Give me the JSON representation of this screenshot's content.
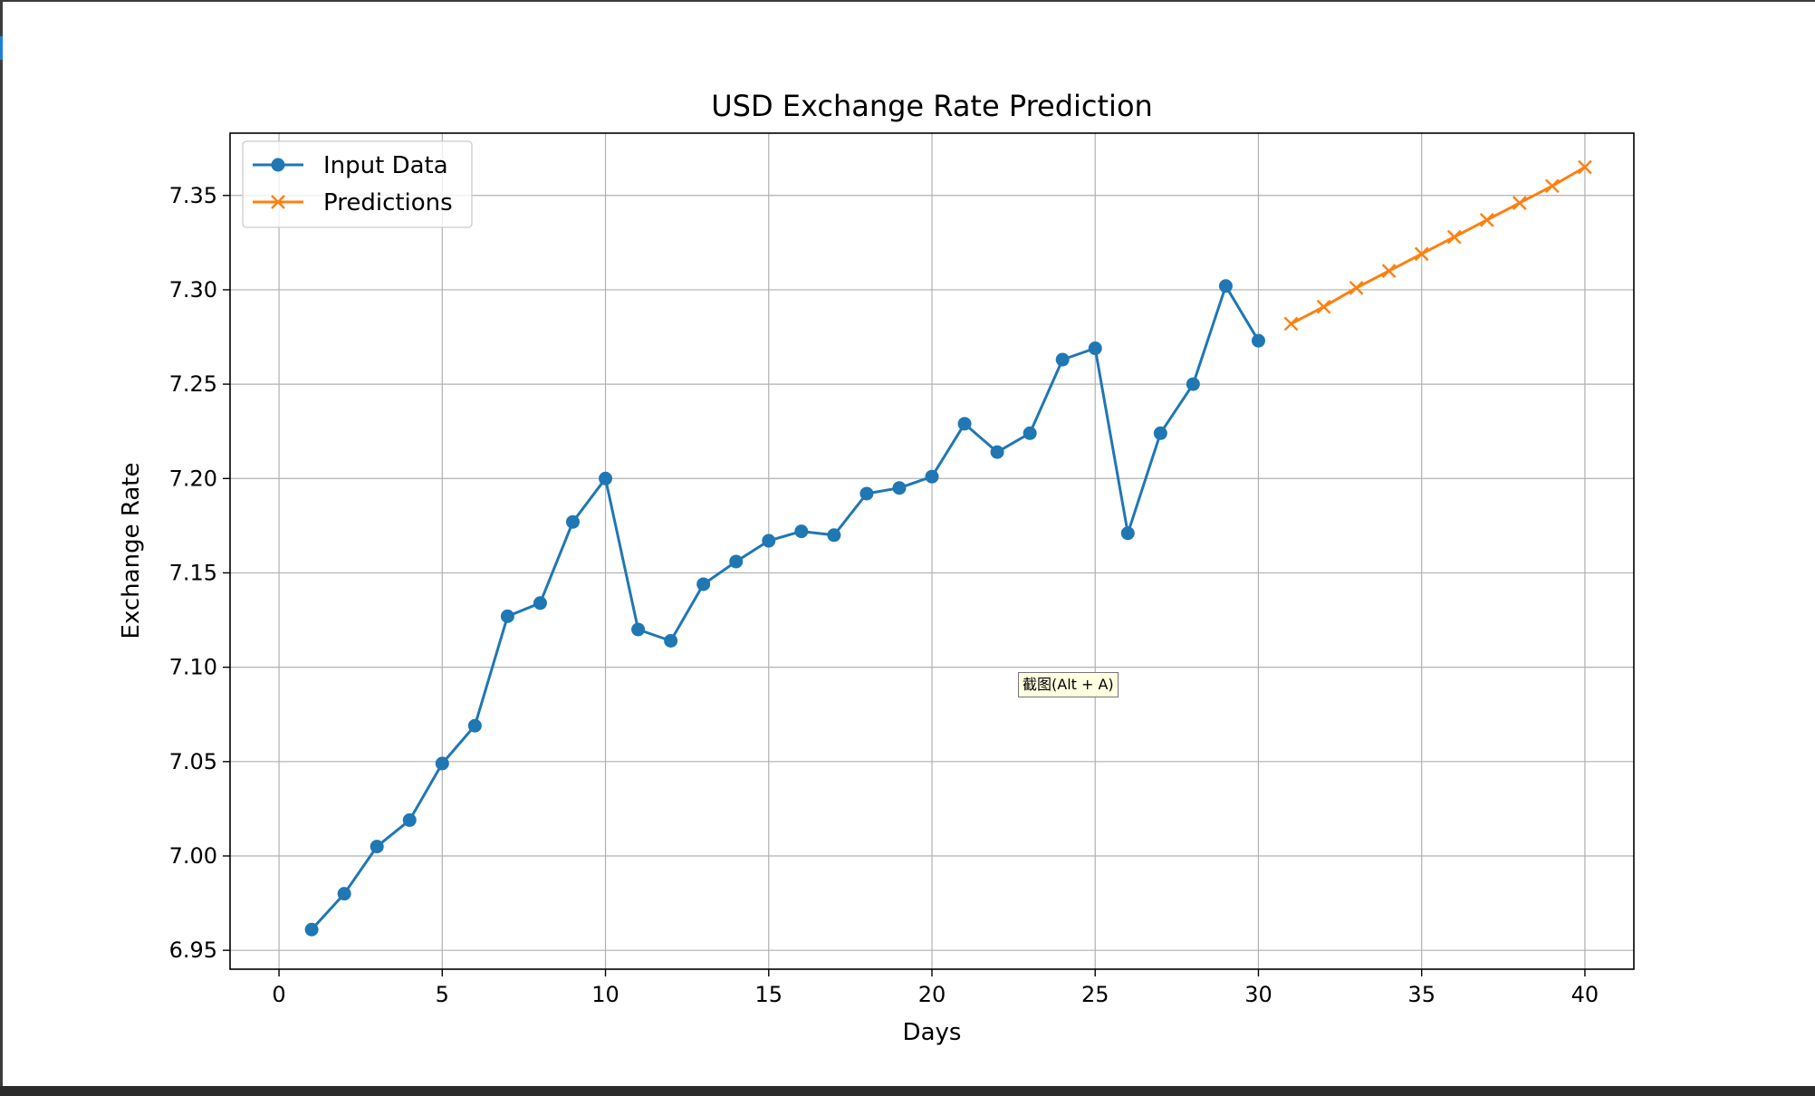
{
  "tooltip": {
    "text": "截图(Alt + A)"
  },
  "chart_data": {
    "type": "line",
    "title": "USD Exchange Rate Prediction",
    "xlabel": "Days",
    "ylabel": "Exchange Rate",
    "xlim": [
      -1.5,
      41.5
    ],
    "ylim": [
      6.94,
      7.383
    ],
    "xticks": [
      0,
      5,
      10,
      15,
      20,
      25,
      30,
      35,
      40
    ],
    "xtick_labels": [
      "0",
      "5",
      "10",
      "15",
      "20",
      "25",
      "30",
      "35",
      "40"
    ],
    "yticks": [
      6.95,
      7.0,
      7.05,
      7.1,
      7.15,
      7.2,
      7.25,
      7.3,
      7.35
    ],
    "ytick_labels": [
      "6.95",
      "7.00",
      "7.05",
      "7.10",
      "7.15",
      "7.20",
      "7.25",
      "7.30",
      "7.35"
    ],
    "grid": true,
    "legend_position": "top-left",
    "series": [
      {
        "name": "Input Data",
        "color": "#1f77b4",
        "marker": "circle",
        "x": [
          1,
          2,
          3,
          4,
          5,
          6,
          7,
          8,
          9,
          10,
          11,
          12,
          13,
          14,
          15,
          16,
          17,
          18,
          19,
          20,
          21,
          22,
          23,
          24,
          25,
          26,
          27,
          28,
          29,
          30
        ],
        "y": [
          6.961,
          6.98,
          7.005,
          7.019,
          7.049,
          7.069,
          7.127,
          7.134,
          7.177,
          7.2,
          7.12,
          7.114,
          7.144,
          7.156,
          7.167,
          7.172,
          7.17,
          7.192,
          7.195,
          7.201,
          7.229,
          7.214,
          7.224,
          7.263,
          7.269,
          7.171,
          7.224,
          7.25,
          7.302,
          7.273
        ]
      },
      {
        "name": "Predictions",
        "color": "#ff7f0e",
        "marker": "x",
        "x": [
          31,
          32,
          33,
          34,
          35,
          36,
          37,
          38,
          39,
          40
        ],
        "y": [
          7.282,
          7.291,
          7.301,
          7.31,
          7.319,
          7.328,
          7.337,
          7.346,
          7.355,
          7.365
        ]
      }
    ]
  }
}
